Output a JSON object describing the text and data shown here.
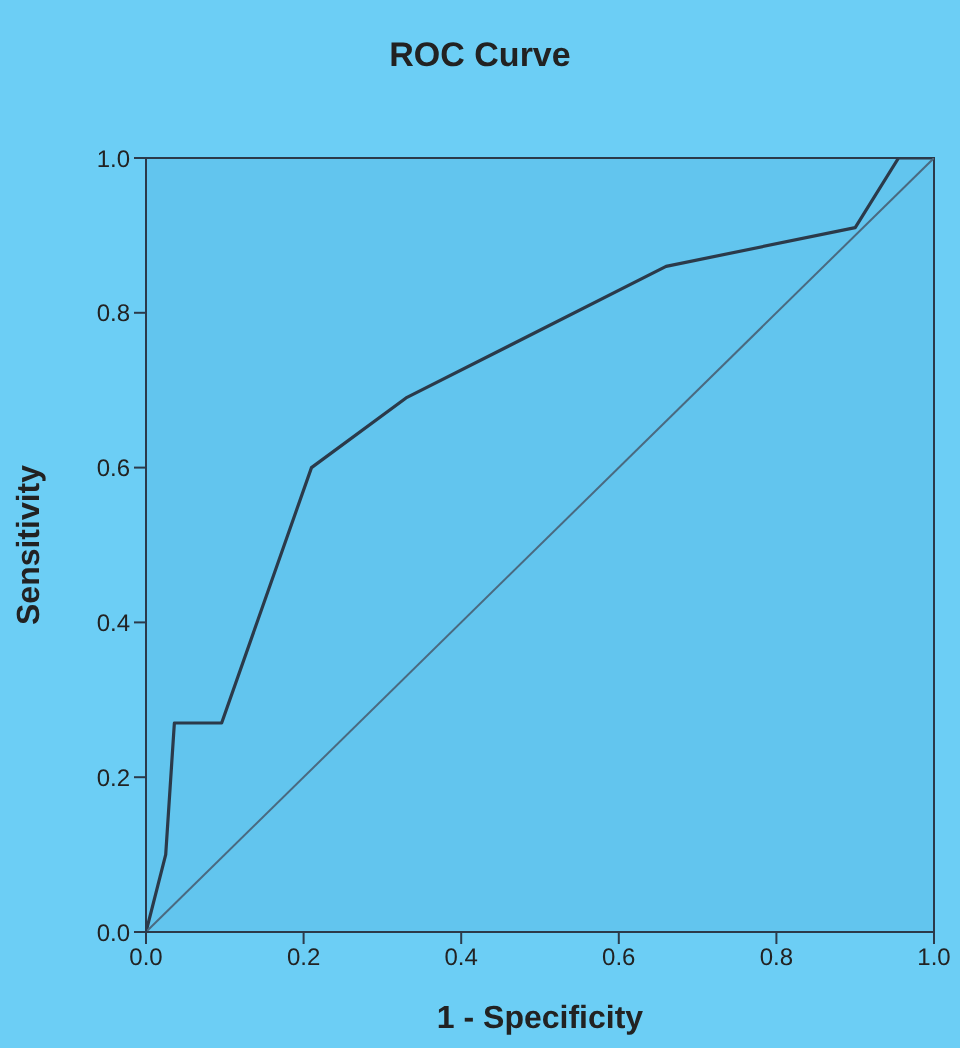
{
  "chart_data": {
    "type": "line",
    "title": "ROC Curve",
    "xlabel": "1 - Specificity",
    "ylabel": "Sensitivity",
    "xlim": [
      0,
      1
    ],
    "ylim": [
      0,
      1
    ],
    "xticks": [
      {
        "value": 0,
        "label": "0.0"
      },
      {
        "value": 0.2,
        "label": "0.2"
      },
      {
        "value": 0.4,
        "label": "0.4"
      },
      {
        "value": 0.6,
        "label": "0.6"
      },
      {
        "value": 0.8,
        "label": "0.8"
      },
      {
        "value": 1,
        "label": "1.0"
      }
    ],
    "yticks": [
      {
        "value": 0,
        "label": "0.0"
      },
      {
        "value": 0.2,
        "label": "0.2"
      },
      {
        "value": 0.4,
        "label": "0.4"
      },
      {
        "value": 0.6,
        "label": "0.6"
      },
      {
        "value": 0.8,
        "label": "0.8"
      },
      {
        "value": 1,
        "label": "1.0"
      }
    ],
    "series": [
      {
        "color": "#2b3a4a",
        "x": [
          0,
          0.025,
          0.036,
          0.096,
          0.21,
          0.33,
          0.66,
          0.9,
          0.955,
          1
        ],
        "values": [
          0,
          0.1,
          0.27,
          0.27,
          0.6,
          0.69,
          0.86,
          0.91,
          1,
          1
        ]
      },
      {
        "color": "#4a6a80",
        "x": [
          0,
          1
        ],
        "values": [
          0,
          1
        ]
      }
    ],
    "legend": false,
    "marker": "none",
    "line_style": "solid"
  }
}
